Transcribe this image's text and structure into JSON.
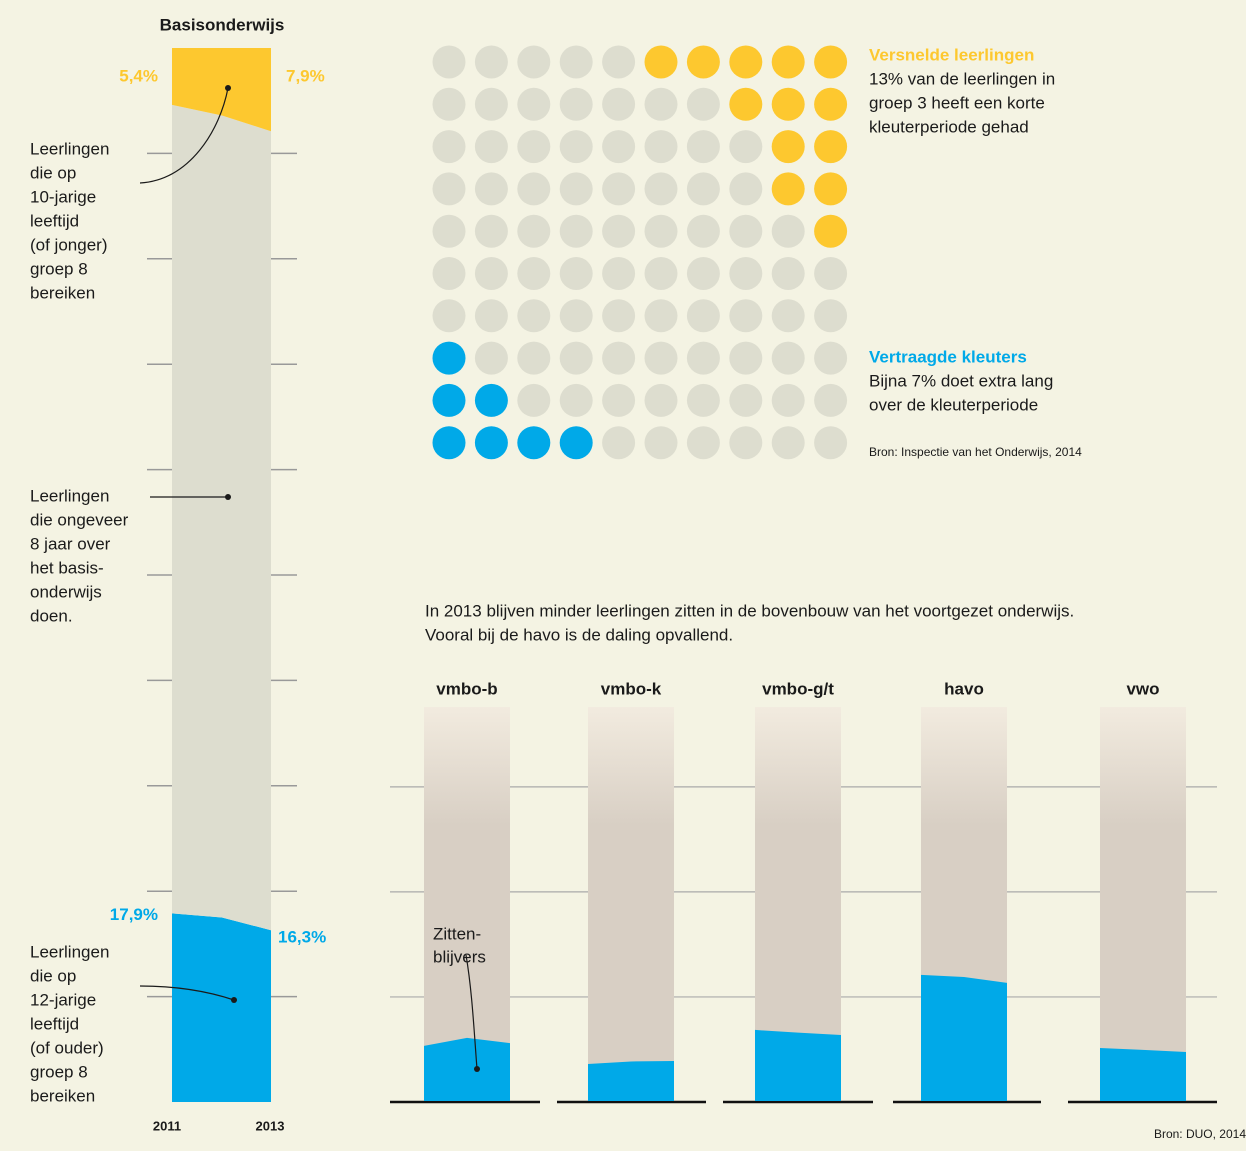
{
  "chart_data": [
    {
      "type": "stacked-area",
      "title": "Basisonderwijs",
      "categories": [
        "2011",
        null,
        "2013"
      ],
      "series": [
        {
          "color": "#00a9e8",
          "values": [
            17.9,
            17.5,
            16.3
          ],
          "value_labels": [
            "17,9%",
            null,
            "16,3%"
          ]
        },
        {
          "color": "#ddddcf",
          "values": [
            76.7,
            76.1,
            75.8
          ]
        },
        {
          "color": "#fdc82f",
          "values": [
            5.4,
            6.4,
            7.9
          ],
          "value_labels": [
            "5,4%",
            null,
            "7,9%"
          ]
        }
      ],
      "ylim": [
        0,
        100
      ],
      "yticks": [
        0,
        10,
        20,
        30,
        40,
        50,
        60,
        70,
        80,
        90,
        100
      ],
      "annotations": [
        {
          "text": [
            "Leerlingen",
            "die op",
            "10-jarige",
            "leeftijd",
            "(of jonger)",
            "groep 8",
            "bereiken"
          ]
        },
        {
          "text": [
            "Leerlingen",
            "die ongeveer",
            "8 jaar over",
            "het basis-",
            "onderwijs",
            "doen."
          ]
        },
        {
          "text": [
            "Leerlingen",
            "die op",
            "12-jarige",
            "leeftijd",
            "(of ouder)",
            "groep 8",
            "bereiken"
          ]
        }
      ]
    },
    {
      "type": "waffle",
      "series": [
        {
          "name": "Versnelde leerlingen",
          "color": "#fdc82f",
          "values": [
            13
          ],
          "text": [
            "13% van de leerlingen in",
            "groep 3 heeft een korte",
            "kleuterperiode gehad"
          ]
        },
        {
          "name": "Vertraagde kleuters",
          "color": "#00a9e8",
          "values": [
            7
          ],
          "text": [
            "Bijna 7% doet extra lang",
            "over de kleuterperiode"
          ]
        }
      ],
      "rest_color": "#ddddcf",
      "source": "Bron: Inspectie van het Onderwijs, 2014"
    },
    {
      "type": "area-bars",
      "subtitle": [
        "In 2013 blijven minder leerlingen zitten in de bovenbouw van het voortgezet onderwijs.",
        "Vooral bij de havo is de daling opvallend."
      ],
      "categories": [
        "vmbo-b",
        "vmbo-k",
        "vmbo-g/t",
        "havo",
        "vwo"
      ],
      "values": [
        [
          2.67,
          3.05,
          2.8
        ],
        [
          1.81,
          1.93,
          1.95
        ],
        [
          3.43,
          3.3,
          3.19
        ],
        [
          6.05,
          5.95,
          5.67
        ],
        [
          2.57,
          2.48,
          2.38
        ]
      ],
      "color": "#00a9e8",
      "ylim": [
        0,
        18.8
      ],
      "yticks": [
        0,
        5,
        10,
        15
      ],
      "annotation": [
        "Zitten-",
        "blijvers"
      ],
      "source": "Bron: DUO, 2014"
    }
  ]
}
